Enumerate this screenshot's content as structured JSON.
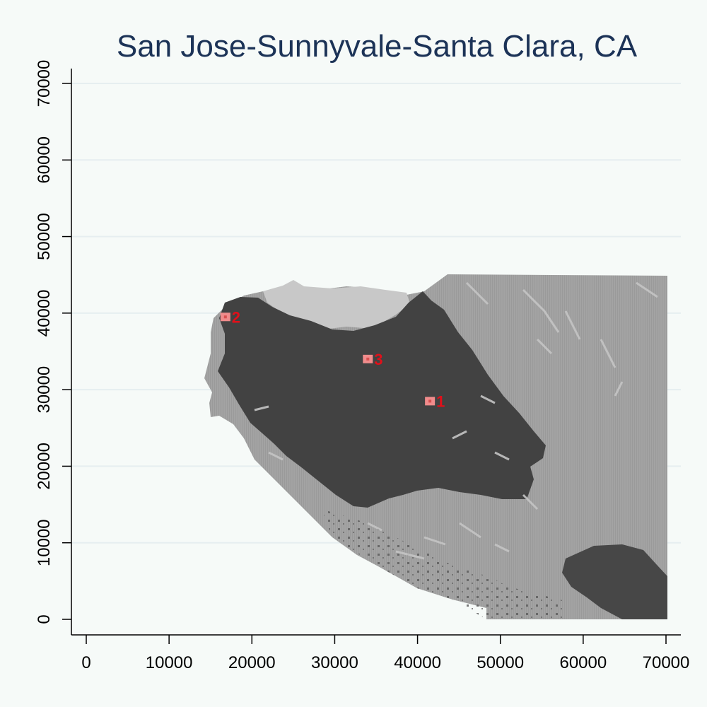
{
  "chart_data": {
    "type": "map",
    "title": "San Jose-Sunnyvale-Santa Clara, CA",
    "xlabel": "",
    "ylabel": "",
    "xlim": [
      -2000,
      71500
    ],
    "ylim": [
      -2000,
      72000
    ],
    "x_ticks": [
      "0",
      "10000",
      "20000",
      "30000",
      "40000",
      "50000",
      "60000",
      "70000"
    ],
    "y_ticks": [
      "0",
      "10000",
      "20000",
      "30000",
      "40000",
      "50000",
      "60000",
      "70000"
    ],
    "gridlines": "horizontal",
    "points": [
      {
        "label": "1",
        "x": 41500,
        "y": 28500
      },
      {
        "label": "2",
        "x": 16800,
        "y": 39500
      },
      {
        "label": "3",
        "x": 34000,
        "y": 34000
      }
    ],
    "colors": {
      "background": "#f6faf8",
      "grid": "#e6eef0",
      "dark_region": "#424242",
      "mid_region": "#a2a2a2",
      "light_region": "#c9c9c9",
      "marker": "#f08c8c",
      "label": "#e0101a",
      "title": "#1c3357"
    }
  }
}
